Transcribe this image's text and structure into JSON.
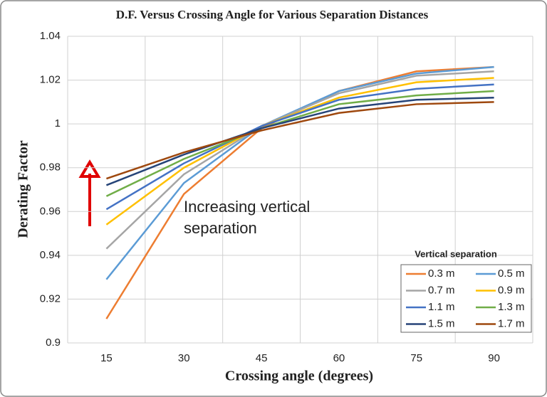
{
  "chart_data": {
    "type": "line",
    "title": "D.F. Versus Crossing Angle for Various Separation Distances",
    "x_label": "Crossing angle (degrees)",
    "y_label": "Derating Factor",
    "categories": [
      "15",
      "30",
      "45",
      "60",
      "75",
      "90"
    ],
    "ylim": [
      0.9,
      1.04
    ],
    "yticks": [
      0.9,
      0.92,
      0.94,
      0.96,
      0.98,
      1,
      1.02,
      1.04
    ],
    "grid": true,
    "legend_title": "Vertical separation",
    "legend_position": "lower right",
    "annotations": [
      "Increasing vertical",
      "separation"
    ],
    "series": [
      {
        "name": "0.3 m",
        "color": "#ED7D31",
        "values": [
          0.911,
          0.968,
          0.998,
          1.015,
          1.024,
          1.026
        ]
      },
      {
        "name": "0.5 m",
        "color": "#5B9BD5",
        "values": [
          0.929,
          0.973,
          0.999,
          1.015,
          1.023,
          1.026
        ]
      },
      {
        "name": "0.7 m",
        "color": "#A5A5A5",
        "values": [
          0.943,
          0.977,
          0.999,
          1.014,
          1.022,
          1.024
        ]
      },
      {
        "name": "0.9 m",
        "color": "#FFC000",
        "values": [
          0.954,
          0.98,
          0.999,
          1.012,
          1.019,
          1.021
        ]
      },
      {
        "name": "1.1 m",
        "color": "#4472C4",
        "values": [
          0.961,
          0.982,
          0.999,
          1.011,
          1.016,
          1.018
        ]
      },
      {
        "name": "1.3 m",
        "color": "#70AD47",
        "values": [
          0.967,
          0.984,
          0.998,
          1.009,
          1.013,
          1.015
        ]
      },
      {
        "name": "1.5 m",
        "color": "#264478",
        "values": [
          0.972,
          0.986,
          0.998,
          1.007,
          1.011,
          1.012
        ]
      },
      {
        "name": "1.7 m",
        "color": "#9E480E",
        "values": [
          0.975,
          0.987,
          0.997,
          1.005,
          1.009,
          1.01
        ]
      }
    ]
  }
}
